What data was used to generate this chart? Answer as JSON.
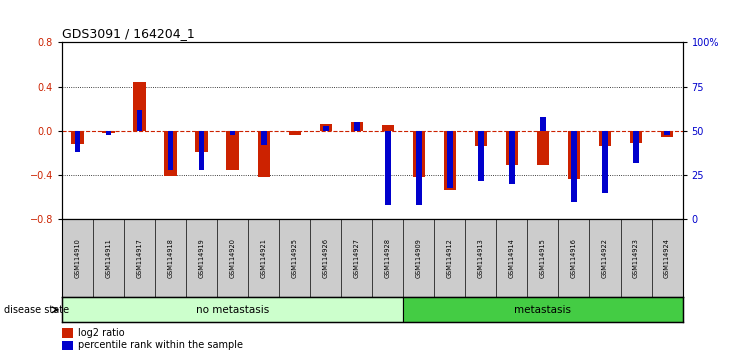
{
  "title": "GDS3091 / 164204_1",
  "samples": [
    "GSM114910",
    "GSM114911",
    "GSM114917",
    "GSM114918",
    "GSM114919",
    "GSM114920",
    "GSM114921",
    "GSM114925",
    "GSM114926",
    "GSM114927",
    "GSM114928",
    "GSM114909",
    "GSM114912",
    "GSM114913",
    "GSM114914",
    "GSM114915",
    "GSM114916",
    "GSM114922",
    "GSM114923",
    "GSM114924"
  ],
  "log2_ratio": [
    -0.12,
    -0.02,
    0.44,
    -0.41,
    -0.19,
    -0.35,
    -0.42,
    -0.04,
    0.06,
    0.08,
    0.05,
    -0.42,
    -0.53,
    -0.14,
    -0.31,
    -0.31,
    -0.43,
    -0.14,
    -0.11,
    -0.05
  ],
  "percentile_rank": [
    38,
    48,
    62,
    28,
    28,
    48,
    42,
    50,
    53,
    55,
    8,
    8,
    18,
    22,
    20,
    58,
    10,
    15,
    32,
    48
  ],
  "no_metastasis_count": 11,
  "metastasis_count": 9,
  "ylim": [
    -0.8,
    0.8
  ],
  "yticks_left": [
    -0.8,
    -0.4,
    0.0,
    0.4,
    0.8
  ],
  "yticks_right": [
    0,
    25,
    50,
    75,
    100
  ],
  "bar_color_red": "#cc2200",
  "bar_color_blue": "#0000cc",
  "no_metastasis_color": "#ccffcc",
  "metastasis_color": "#44cc44",
  "label_bg_color": "#cccccc",
  "disease_state_label": "disease state",
  "no_metastasis_label": "no metastasis",
  "metastasis_label": "metastasis",
  "legend_log2": "log2 ratio",
  "legend_percentile": "percentile rank within the sample",
  "red_bar_width": 0.4,
  "blue_bar_width": 0.18
}
